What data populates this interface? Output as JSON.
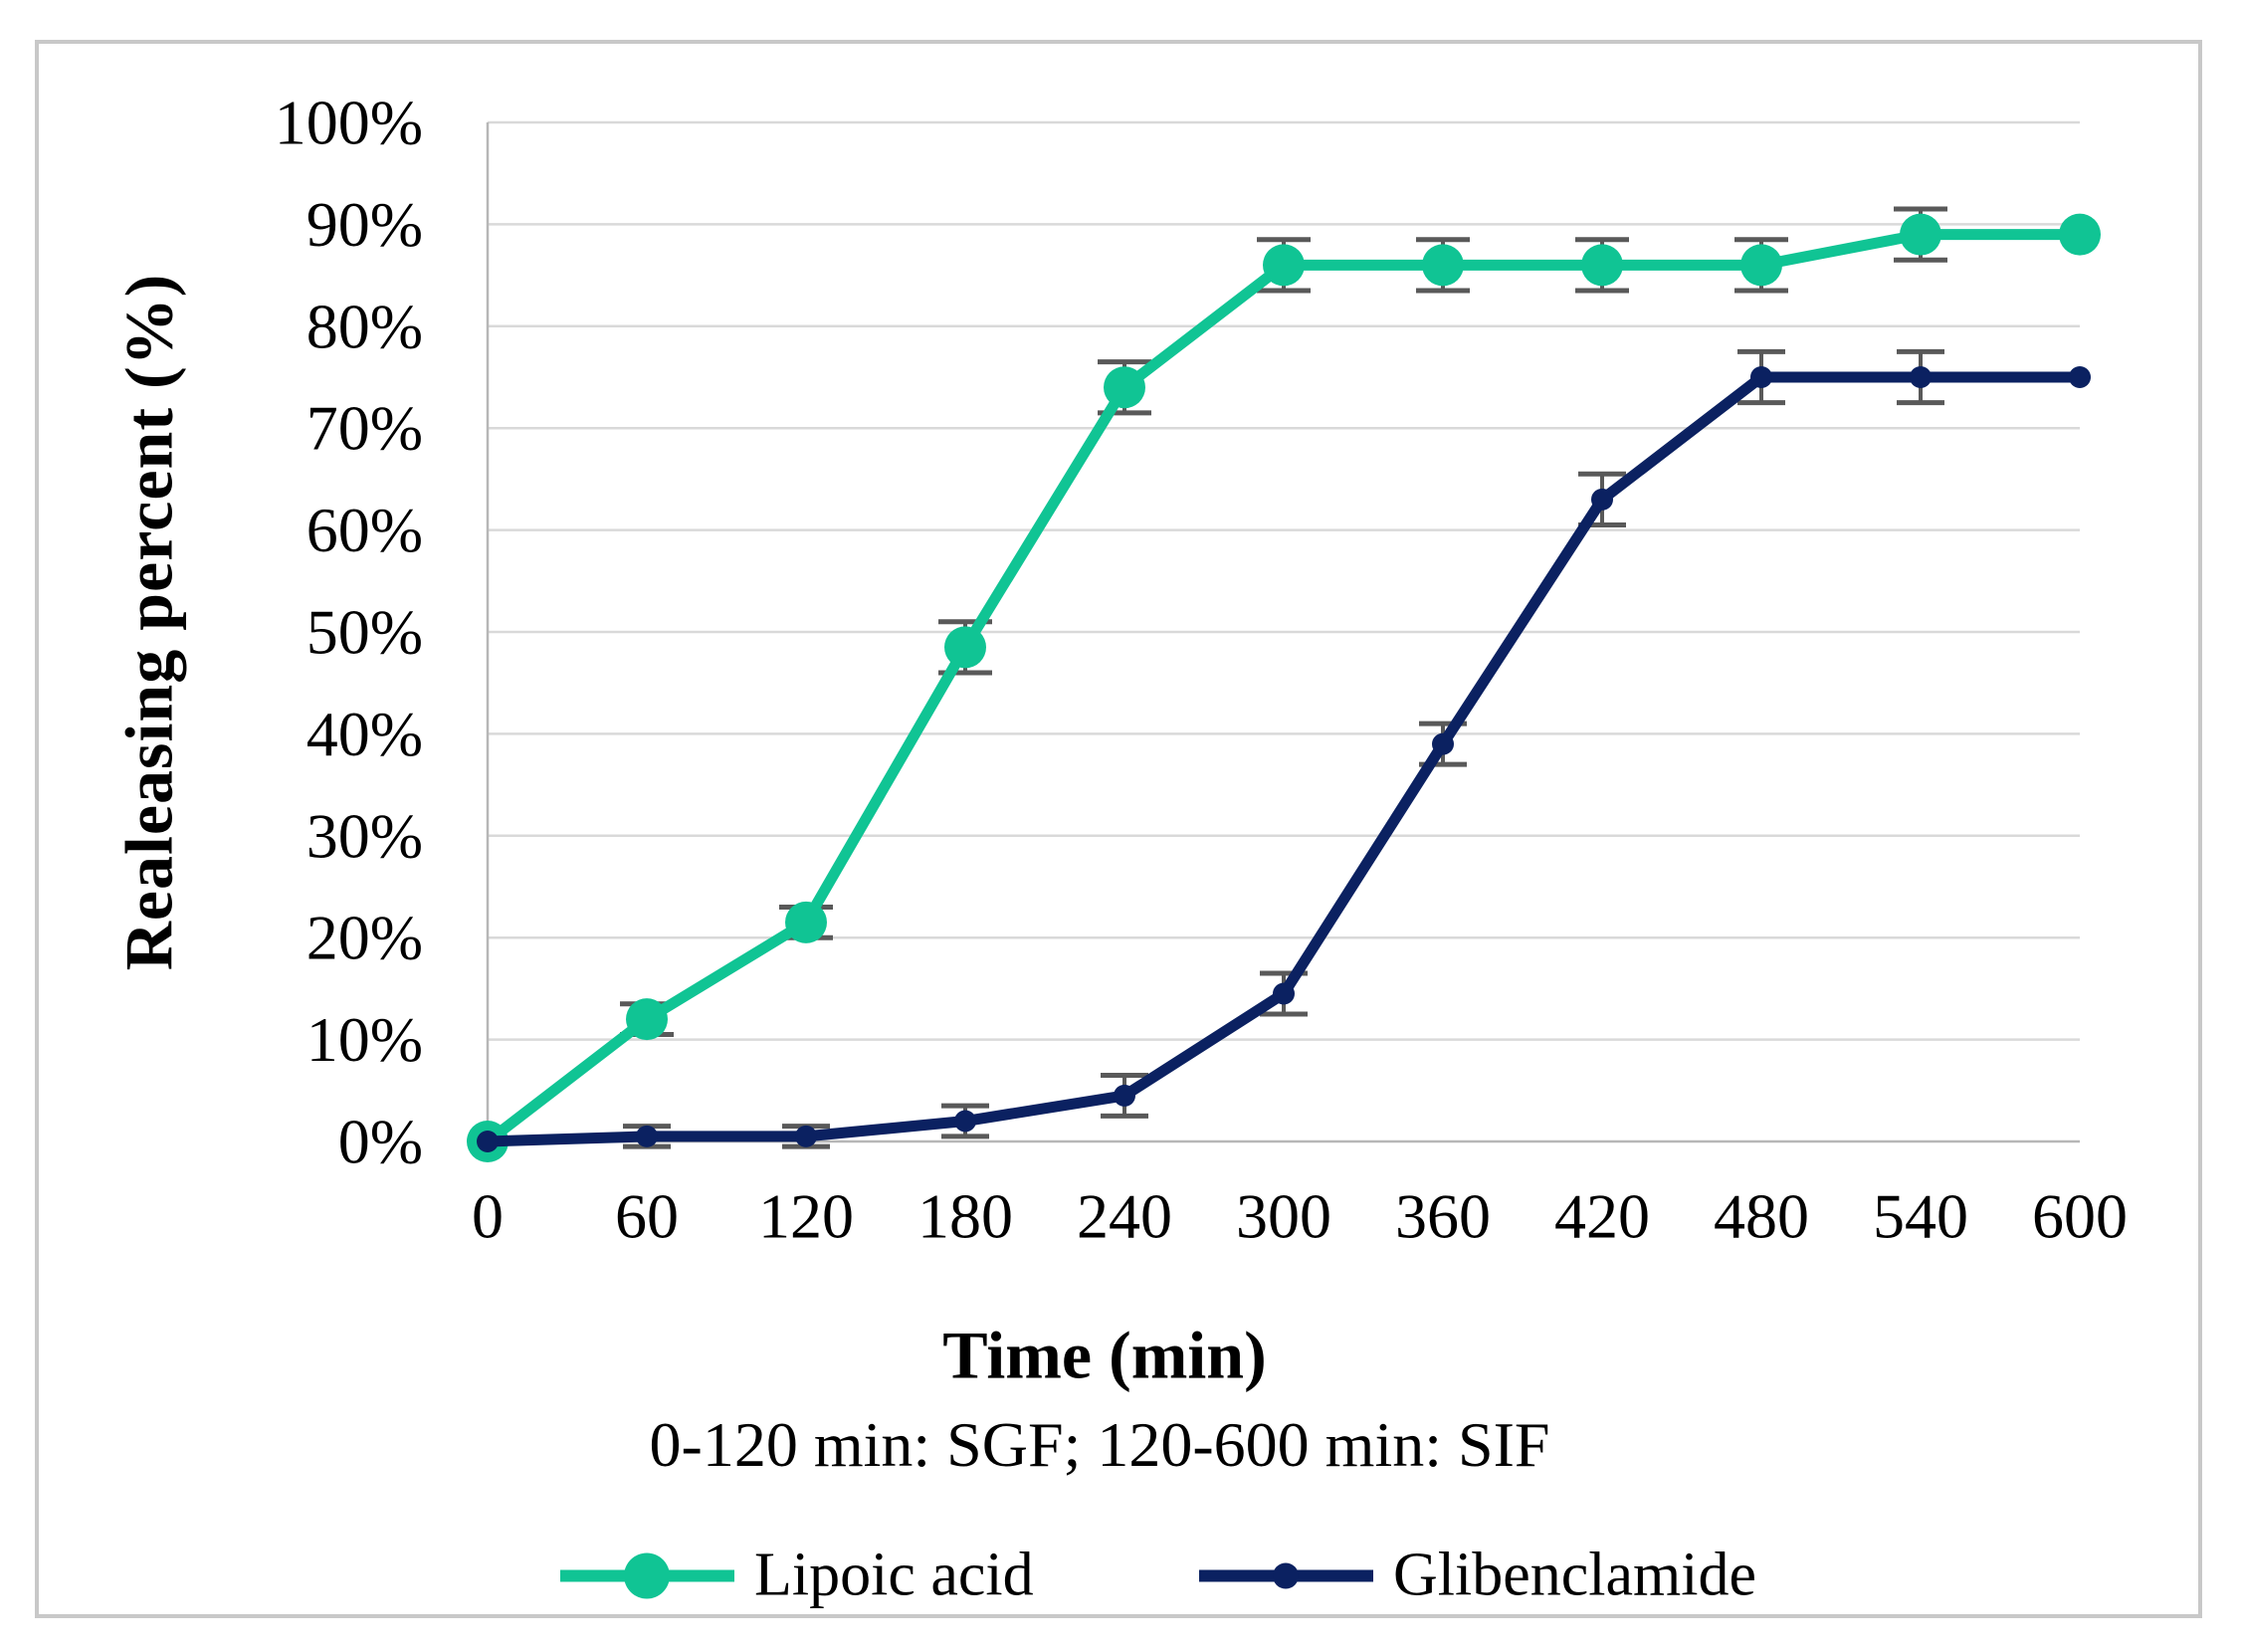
{
  "figure": {
    "background": "#ffffff",
    "border_color": "#c8c8c8"
  },
  "chart_data": {
    "type": "line",
    "title": "",
    "ylabel": "Realeasing percent (%)",
    "xlabel": "Time (min)",
    "x_subtitle": "0-120 min: SGF; 120-600 min: SIF",
    "x": [
      0,
      60,
      120,
      180,
      240,
      300,
      360,
      420,
      480,
      540,
      600
    ],
    "x_tick_labels": [
      "0",
      "60",
      "120",
      "180",
      "240",
      "300",
      "360",
      "420",
      "480",
      "540",
      "600"
    ],
    "y_tick_labels": [
      "0%",
      "10%",
      "20%",
      "30%",
      "40%",
      "50%",
      "60%",
      "70%",
      "80%",
      "90%",
      "100%"
    ],
    "ylim": [
      0,
      100
    ],
    "xlim": [
      0,
      600
    ],
    "grid": true,
    "gridline_color": "#d9d9d9",
    "axis_color": "#b7b7b7",
    "error_bar_color": "#595959",
    "legend_position": "bottom",
    "series": [
      {
        "name": "Lipoic acid",
        "color": "#10c494",
        "marker": "circle",
        "marker_radius": 21,
        "line_width": 11,
        "values": [
          0,
          12,
          21.5,
          48.5,
          74,
          86,
          86,
          86,
          86,
          89,
          89
        ],
        "errors": [
          0,
          1.5,
          1.5,
          2.5,
          2.5,
          2.5,
          2.5,
          2.5,
          2.5,
          2.5,
          0
        ]
      },
      {
        "name": "Glibenclamide",
        "color": "#0b2161",
        "marker": "circle",
        "marker_radius": 11,
        "line_width": 11,
        "values": [
          0,
          0.5,
          0.5,
          2,
          4.5,
          14.5,
          39,
          63,
          75,
          75,
          75
        ],
        "errors": [
          0,
          1,
          1,
          1.5,
          2,
          2,
          2,
          2.5,
          2.5,
          2.5,
          0
        ]
      }
    ]
  }
}
